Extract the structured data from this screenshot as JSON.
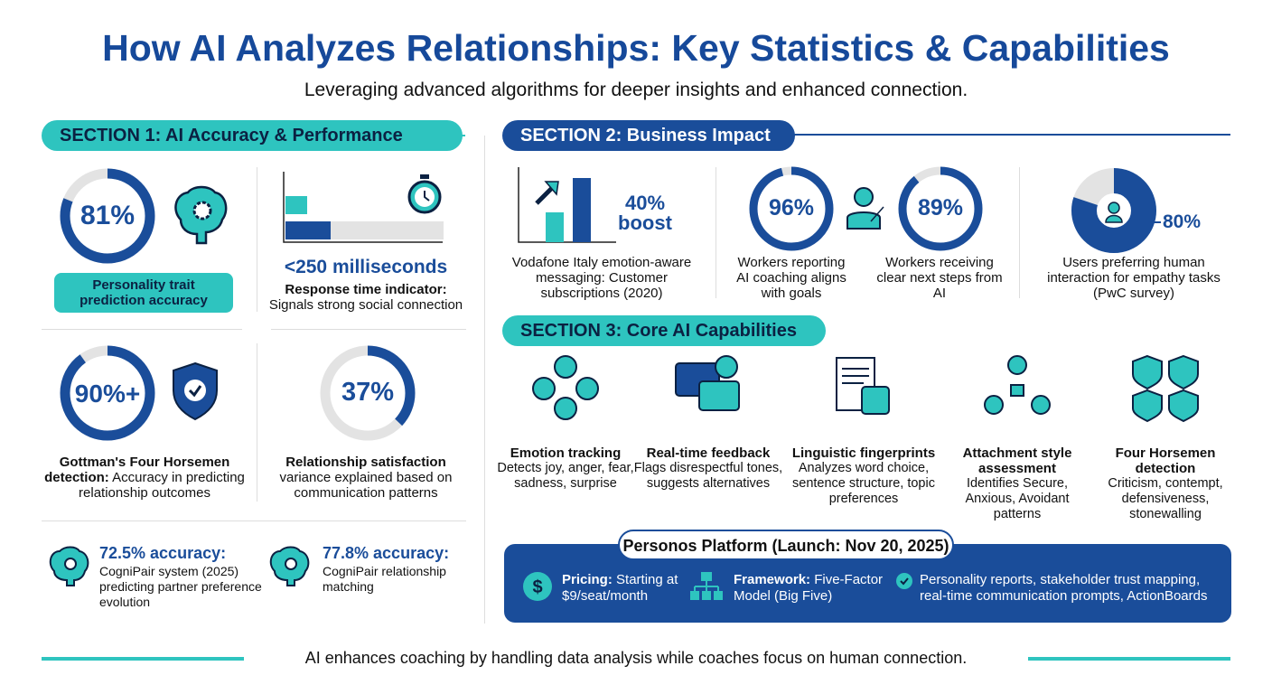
{
  "title": "How AI Analyzes Relationships: Key Statistics & Capabilities",
  "subtitle": "Leveraging advanced algorithms for deeper insights and enhanced connection.",
  "colors": {
    "navy": "#1a4d9a",
    "teal": "#2ec4bf",
    "gray": "#e3e3e3"
  },
  "section1": {
    "heading": "SECTION 1: AI Accuracy & Performance",
    "personality": {
      "value": "81%",
      "percent": 81,
      "label": "Personality trait prediction accuracy",
      "icon": "brain-gear-icon"
    },
    "response": {
      "value": "<250 milliseconds",
      "title": "Response time indicator:",
      "desc": "Signals strong social connection",
      "icon": "stopwatch-icon"
    },
    "gottman": {
      "value": "90%+",
      "percent": 90,
      "title": "Gottman's Four Horsemen detection:",
      "desc": "Accuracy in predicting relationship outcomes",
      "icon": "shield-check-icon"
    },
    "satisfaction": {
      "value": "37%",
      "percent": 37,
      "title": "Relationship satisfaction",
      "desc": "variance explained based on communication patterns"
    },
    "cognipair1": {
      "title": "72.5% accuracy:",
      "desc": "CogniPair system (2025) predicting partner preference evolution"
    },
    "cognipair2": {
      "title": "77.8% accuracy:",
      "desc": "CogniPair relationship matching"
    }
  },
  "section2": {
    "heading": "SECTION 2: Business Impact",
    "vodafone": {
      "value": "40%",
      "value2": "boost",
      "desc": "Vodafone Italy emotion-aware messaging: Customer subscriptions (2020)"
    },
    "workers1": {
      "value": "96%",
      "percent": 96,
      "desc": "Workers reporting AI coaching aligns with goals"
    },
    "workers2": {
      "value": "89%",
      "percent": 89,
      "desc": "Workers receiving clear next steps from AI"
    },
    "users": {
      "value": "80%",
      "percent": 80,
      "desc": "Users preferring human interaction for empathy tasks (PwC survey)"
    }
  },
  "section3": {
    "heading": "SECTION 3: Core AI Capabilities",
    "items": [
      {
        "title": "Emotion tracking",
        "desc": "Detects joy, anger, fear, sadness, surprise",
        "icon": "emotion-faces-icon"
      },
      {
        "title": "Real-time feedback",
        "desc": "Flags disrespectful tones, suggests alternatives",
        "icon": "chat-feedback-icon"
      },
      {
        "title": "Linguistic fingerprints",
        "desc": "Analyzes word choice, sentence structure, topic preferences",
        "icon": "document-fingerprint-icon"
      },
      {
        "title": "Attachment style assessment",
        "desc": "Identifies Secure, Anxious, Avoidant patterns",
        "icon": "people-network-icon"
      },
      {
        "title": "Four Horsemen detection",
        "desc": "Criticism, contempt, defensiveness, stonewalling",
        "icon": "shields-icon"
      }
    ]
  },
  "platform": {
    "title": "Personos Platform (Launch: Nov 20, 2025)",
    "pricing_label": "Pricing:",
    "pricing": "Starting at $9/seat/month",
    "framework_label": "Framework:",
    "framework": "Five-Factor Model (Big Five)",
    "features": "Personality reports, stakeholder trust mapping, real-time communication prompts, ActionBoards"
  },
  "footer": "AI enhances coaching by handling data analysis while coaches focus on human connection."
}
